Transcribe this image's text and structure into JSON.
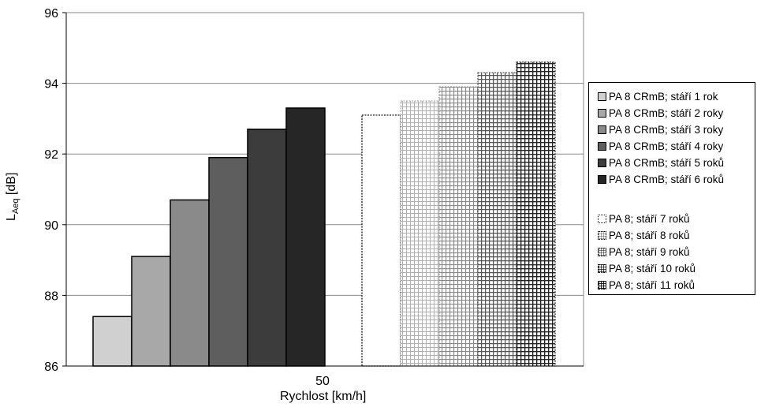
{
  "chart_data": {
    "type": "bar",
    "categories": [
      "50"
    ],
    "xlabel": "Rychlost [km/h]",
    "ylabel_main": "L",
    "ylabel_sub": "Aeq",
    "ylabel_unit": " [dB]",
    "ylim": [
      86,
      96
    ],
    "yticks": [
      "86",
      "88",
      "90",
      "92",
      "94",
      "96"
    ],
    "grid": "horizontal",
    "legend_position": "right",
    "series": [
      {
        "name": "PA 8 CRmB; stáří 1 rok",
        "values": [
          87.4
        ],
        "color": "#d0d0d0",
        "pattern": "solid"
      },
      {
        "name": "PA 8 CRmB; stáří 2 roky",
        "values": [
          89.1
        ],
        "color": "#a8a8a8",
        "pattern": "solid"
      },
      {
        "name": "PA 8 CRmB; stáří 3 roky",
        "values": [
          90.7
        ],
        "color": "#8a8a8a",
        "pattern": "solid"
      },
      {
        "name": "PA 8 CRmB; stáří 4 roky",
        "values": [
          91.9
        ],
        "color": "#5e5e5e",
        "pattern": "solid"
      },
      {
        "name": "PA 8 CRmB; stáří 5 roků",
        "values": [
          92.7
        ],
        "color": "#3c3c3c",
        "pattern": "solid"
      },
      {
        "name": "PA 8 CRmB; stáří 6 roků",
        "values": [
          93.3
        ],
        "color": "#262626",
        "pattern": "solid"
      },
      {
        "name": "PA 8; stáří 7 roků",
        "values": [
          93.1
        ],
        "color": "#ffffff",
        "pattern": "dotted-outline"
      },
      {
        "name": "PA 8; stáří 8 roků",
        "values": [
          93.5
        ],
        "color": "#b0b0b0",
        "pattern": "grid-light"
      },
      {
        "name": "PA 8; stáří 9 roků",
        "values": [
          93.9
        ],
        "color": "#8a8a8a",
        "pattern": "grid-medium"
      },
      {
        "name": "PA 8; stáří 10 roků",
        "values": [
          94.3
        ],
        "color": "#555555",
        "pattern": "grid-dark"
      },
      {
        "name": "PA 8; stáří 11 roků",
        "values": [
          94.6
        ],
        "color": "#222222",
        "pattern": "grid-darkest"
      }
    ]
  }
}
